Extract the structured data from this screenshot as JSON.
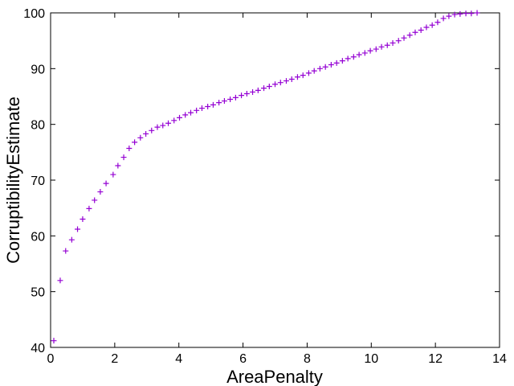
{
  "chart_data": {
    "type": "scatter",
    "title": "",
    "xlabel": "AreaPenalty",
    "ylabel": "CorruptibilityEstimate",
    "xlim": [
      0,
      14
    ],
    "ylim": [
      40,
      100
    ],
    "xticks": [
      0,
      2,
      4,
      6,
      8,
      10,
      12,
      14
    ],
    "yticks": [
      40,
      50,
      60,
      70,
      80,
      90,
      100
    ],
    "grid": false,
    "legend": "none",
    "marker": "plus",
    "color": "#9400d3",
    "series": [
      {
        "points": [
          [
            0.1,
            41.2
          ],
          [
            0.3,
            52.0
          ],
          [
            0.47,
            57.3
          ],
          [
            0.66,
            59.3
          ],
          [
            0.84,
            61.2
          ],
          [
            1.0,
            63.0
          ],
          [
            1.2,
            64.9
          ],
          [
            1.37,
            66.4
          ],
          [
            1.55,
            67.9
          ],
          [
            1.73,
            69.4
          ],
          [
            1.95,
            71.0
          ],
          [
            2.1,
            72.6
          ],
          [
            2.28,
            74.1
          ],
          [
            2.45,
            75.7
          ],
          [
            2.62,
            76.8
          ],
          [
            2.8,
            77.6
          ],
          [
            2.97,
            78.3
          ],
          [
            3.15,
            78.9
          ],
          [
            3.33,
            79.5
          ],
          [
            3.5,
            79.8
          ],
          [
            3.67,
            80.2
          ],
          [
            3.85,
            80.7
          ],
          [
            4.02,
            81.2
          ],
          [
            4.2,
            81.7
          ],
          [
            4.37,
            82.1
          ],
          [
            4.55,
            82.5
          ],
          [
            4.72,
            82.9
          ],
          [
            4.9,
            83.2
          ],
          [
            5.07,
            83.5
          ],
          [
            5.25,
            83.9
          ],
          [
            5.42,
            84.2
          ],
          [
            5.6,
            84.5
          ],
          [
            5.77,
            84.8
          ],
          [
            5.95,
            85.2
          ],
          [
            6.12,
            85.5
          ],
          [
            6.3,
            85.8
          ],
          [
            6.47,
            86.1
          ],
          [
            6.65,
            86.5
          ],
          [
            6.82,
            86.8
          ],
          [
            7.0,
            87.2
          ],
          [
            7.17,
            87.5
          ],
          [
            7.35,
            87.8
          ],
          [
            7.52,
            88.1
          ],
          [
            7.7,
            88.5
          ],
          [
            7.87,
            88.8
          ],
          [
            8.05,
            89.2
          ],
          [
            8.22,
            89.6
          ],
          [
            8.4,
            90.0
          ],
          [
            8.57,
            90.3
          ],
          [
            8.75,
            90.7
          ],
          [
            8.92,
            91.0
          ],
          [
            9.1,
            91.4
          ],
          [
            9.27,
            91.8
          ],
          [
            9.45,
            92.1
          ],
          [
            9.62,
            92.5
          ],
          [
            9.8,
            92.8
          ],
          [
            9.97,
            93.2
          ],
          [
            10.15,
            93.5
          ],
          [
            10.32,
            93.9
          ],
          [
            10.5,
            94.2
          ],
          [
            10.67,
            94.6
          ],
          [
            10.85,
            95.0
          ],
          [
            11.02,
            95.5
          ],
          [
            11.2,
            96.0
          ],
          [
            11.37,
            96.5
          ],
          [
            11.55,
            96.9
          ],
          [
            11.72,
            97.4
          ],
          [
            11.9,
            97.8
          ],
          [
            12.07,
            98.3
          ],
          [
            12.25,
            99.0
          ],
          [
            12.42,
            99.4
          ],
          [
            12.6,
            99.7
          ],
          [
            12.77,
            99.8
          ],
          [
            12.95,
            99.9
          ],
          [
            13.12,
            99.9
          ],
          [
            13.3,
            100.0
          ]
        ]
      }
    ]
  }
}
